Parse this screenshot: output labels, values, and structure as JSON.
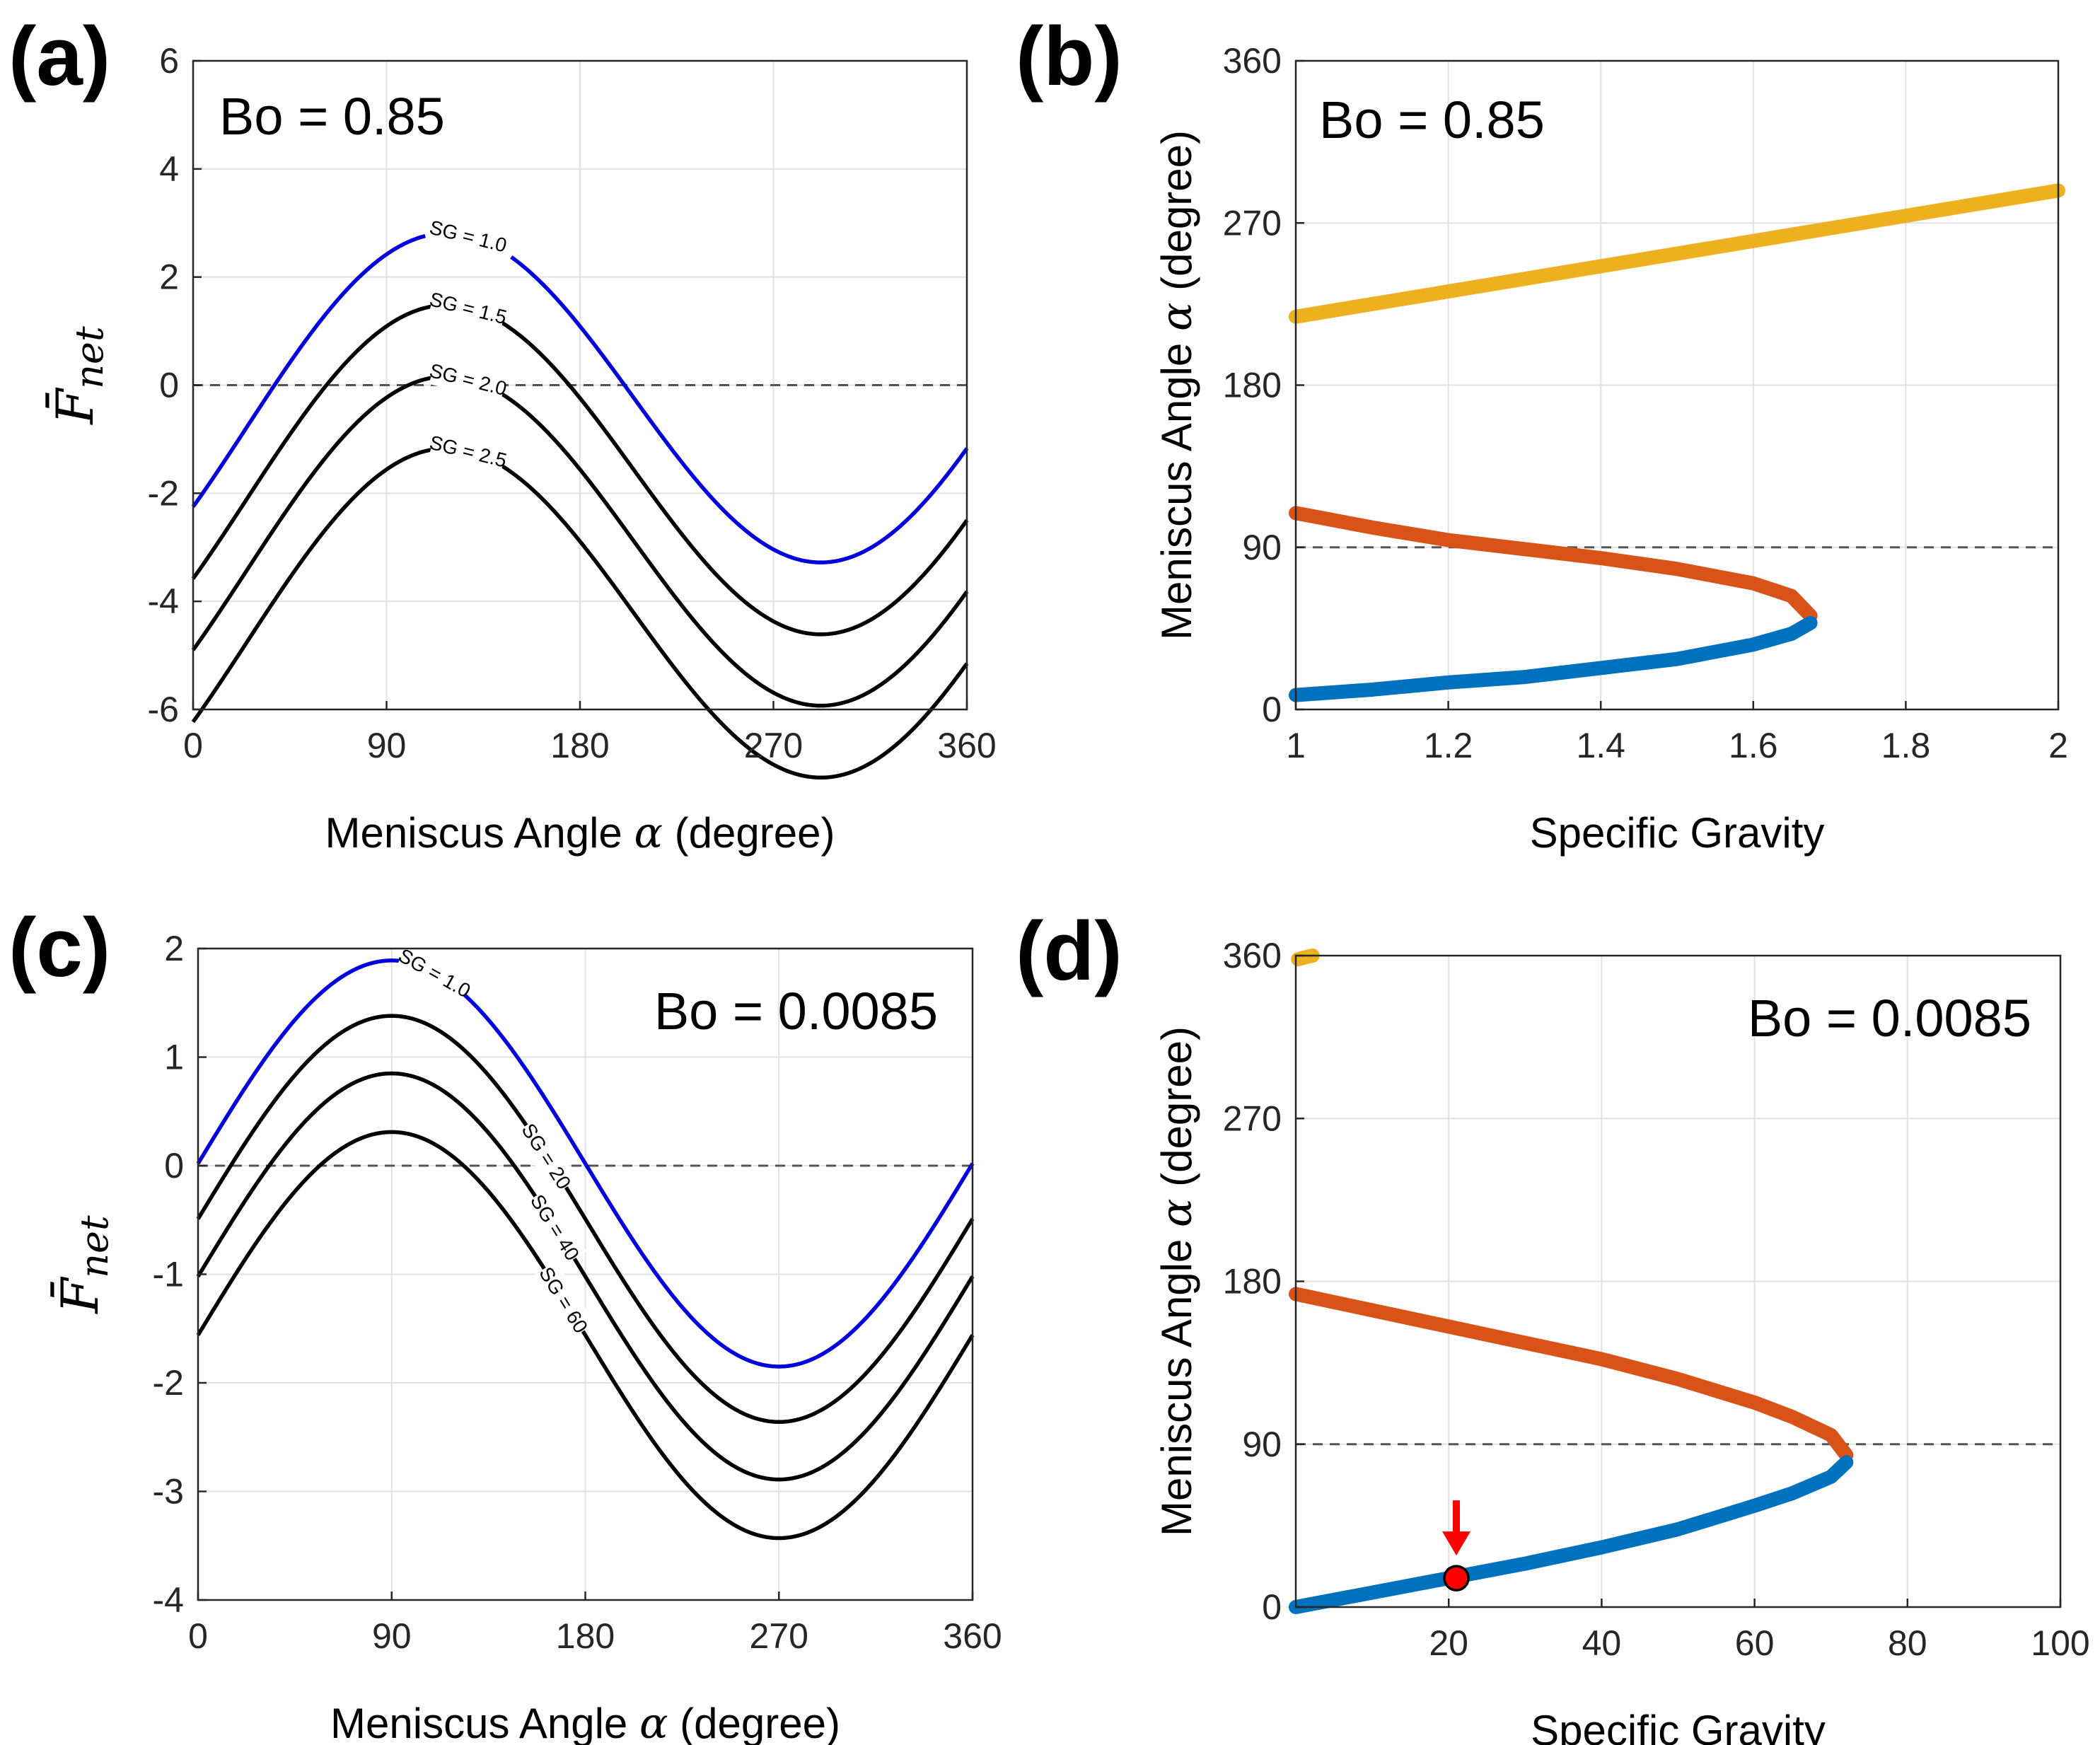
{
  "chart_data": [
    {
      "panel": "(a)",
      "type": "line",
      "annotation": "Bo = 0.85",
      "xlabel": "Meniscus Angle",
      "xsymbol": "α",
      "xunit": "(degree)",
      "ylabel_symbol": "F̄",
      "ylabel_sub": "net",
      "xlim": [
        0,
        360
      ],
      "ylim": [
        -6,
        6
      ],
      "xticks": [
        0,
        90,
        180,
        270,
        360
      ],
      "yticks": [
        -6,
        -4,
        -2,
        0,
        2,
        4,
        6
      ],
      "ytick_labels": [
        "-6",
        "-4",
        "-2",
        "0",
        "2",
        "4",
        "6"
      ],
      "grid": true,
      "reference_line_y": 0,
      "model": {
        "A": 3.0,
        "B": 1.4,
        "k": 0.003
      },
      "series": [
        {
          "label": "SG = 1.0",
          "sg": 1.0,
          "color": "#0000dd",
          "offset": -0.85
        },
        {
          "label": "SG = 1.5",
          "sg": 1.5,
          "color": "#000000",
          "offset": -2.18
        },
        {
          "label": "SG = 2.0",
          "sg": 2.0,
          "color": "#000000",
          "offset": -3.5
        },
        {
          "label": "SG = 2.5",
          "sg": 2.5,
          "color": "#000000",
          "offset": -4.83
        }
      ],
      "first_series_gap_deg": [
        108,
        148
      ]
    },
    {
      "panel": "(b)",
      "type": "scatter",
      "annotation": "Bo = 0.85",
      "xlabel": "Specific Gravity",
      "ylabel": "Meniscus Angle",
      "ysymbol": "α",
      "yunit": "(degree)",
      "xlim": [
        1,
        2
      ],
      "ylim": [
        0,
        360
      ],
      "xticks": [
        1,
        1.2,
        1.4,
        1.6,
        1.8,
        2
      ],
      "xtick_labels": [
        "1",
        "1.2",
        "1.4",
        "1.6",
        "1.8",
        "2"
      ],
      "yticks": [
        0,
        90,
        180,
        270,
        360
      ],
      "grid": true,
      "reference_line_y": 90,
      "series": [
        {
          "color": "#edb120",
          "points": [
            [
              1.0,
              218
            ],
            [
              1.2,
              232
            ],
            [
              1.4,
              246
            ],
            [
              1.6,
              260
            ],
            [
              1.8,
              274
            ],
            [
              2.0,
              288
            ]
          ]
        },
        {
          "color": "#d95319",
          "points": [
            [
              1.0,
              109
            ],
            [
              1.1,
              101
            ],
            [
              1.2,
              94
            ],
            [
              1.3,
              89
            ],
            [
              1.4,
              84
            ],
            [
              1.5,
              78
            ],
            [
              1.6,
              70
            ],
            [
              1.65,
              63
            ],
            [
              1.675,
              52
            ]
          ]
        },
        {
          "color": "#0072bd",
          "points": [
            [
              1.0,
              8
            ],
            [
              1.1,
              11
            ],
            [
              1.2,
              15
            ],
            [
              1.3,
              18
            ],
            [
              1.4,
              23
            ],
            [
              1.5,
              28
            ],
            [
              1.6,
              36
            ],
            [
              1.65,
              42
            ],
            [
              1.675,
              48
            ]
          ]
        }
      ]
    },
    {
      "panel": "(c)",
      "type": "line",
      "annotation": "Bo = 0.0085",
      "xlabel": "Meniscus Angle",
      "xsymbol": "α",
      "xunit": "(degree)",
      "ylabel_symbol": "F̄",
      "ylabel_sub": "net",
      "xlim": [
        0,
        360
      ],
      "ylim": [
        -4,
        2
      ],
      "xticks": [
        0,
        90,
        180,
        270,
        360
      ],
      "yticks": [
        -4,
        -3,
        -2,
        -1,
        0,
        1,
        2
      ],
      "ytick_labels": [
        "-4",
        "-3",
        "-2",
        "-1",
        "0",
        "1",
        "2"
      ],
      "grid": true,
      "reference_line_y": 0,
      "model": {
        "A": 1.87,
        "B": 0,
        "k": 0
      },
      "series": [
        {
          "label": "SG = 1.0",
          "sg": 1.0,
          "color": "#0000dd",
          "offset": 0.02
        },
        {
          "label": "SG = 20",
          "sg": 20,
          "color": "#000000",
          "offset": -0.49
        },
        {
          "label": "SG = 40",
          "sg": 40,
          "color": "#000000",
          "offset": -1.02
        },
        {
          "label": "SG = 60",
          "sg": 60,
          "color": "#000000",
          "offset": -1.56
        }
      ],
      "first_series_gap_deg": [
        107,
        113
      ]
    },
    {
      "panel": "(d)",
      "type": "scatter",
      "annotation": "Bo = 0.0085",
      "xlabel": "Specific Gravity",
      "ylabel": "Meniscus Angle",
      "ysymbol": "α",
      "yunit": "(degree)",
      "xlim": [
        0,
        100
      ],
      "ylim": [
        0,
        360
      ],
      "xticks": [
        20,
        40,
        60,
        80,
        100
      ],
      "xtick_labels": [
        "20",
        "40",
        "60",
        "80",
        "100"
      ],
      "yticks": [
        0,
        90,
        180,
        270,
        360
      ],
      "grid": true,
      "reference_line_y": 90,
      "series": [
        {
          "color": "#edb120",
          "points": [
            [
              0.3,
              358
            ],
            [
              1.2,
              359
            ],
            [
              2.2,
              360
            ]
          ]
        },
        {
          "color": "#d95319",
          "points": [
            [
              0,
              173
            ],
            [
              10,
              164
            ],
            [
              20,
              155
            ],
            [
              30,
              146
            ],
            [
              40,
              137
            ],
            [
              50,
              126
            ],
            [
              60,
              113
            ],
            [
              65,
              105
            ],
            [
              70,
              95
            ],
            [
              72,
              84
            ]
          ]
        },
        {
          "color": "#0072bd",
          "points": [
            [
              0,
              0
            ],
            [
              10,
              8
            ],
            [
              20,
              16
            ],
            [
              30,
              24
            ],
            [
              40,
              33
            ],
            [
              50,
              43
            ],
            [
              60,
              56
            ],
            [
              65,
              63
            ],
            [
              70,
              72
            ],
            [
              72,
              80
            ]
          ]
        }
      ],
      "marker": {
        "x": 21,
        "y": 16,
        "color": "#ff0000",
        "arrow_color": "#ff0000"
      }
    }
  ]
}
